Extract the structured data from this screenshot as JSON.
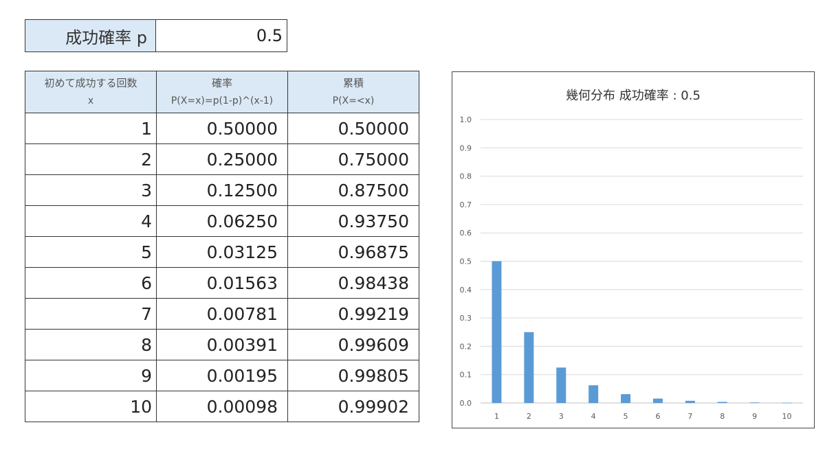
{
  "param": {
    "label": "成功確率 p",
    "value": "0.5"
  },
  "table": {
    "headers": [
      {
        "line1": "初めて成功する回数",
        "line2": "x"
      },
      {
        "line1": "確率",
        "line2": "P(X=x)=p(1-p)^(x-1)"
      },
      {
        "line1": "累積",
        "line2": "P(X=<x)"
      }
    ],
    "rows": [
      {
        "x": "1",
        "p": "0.50000",
        "cum": "0.50000"
      },
      {
        "x": "2",
        "p": "0.25000",
        "cum": "0.75000"
      },
      {
        "x": "3",
        "p": "0.12500",
        "cum": "0.87500"
      },
      {
        "x": "4",
        "p": "0.06250",
        "cum": "0.93750"
      },
      {
        "x": "5",
        "p": "0.03125",
        "cum": "0.96875"
      },
      {
        "x": "6",
        "p": "0.01563",
        "cum": "0.98438"
      },
      {
        "x": "7",
        "p": "0.00781",
        "cum": "0.99219"
      },
      {
        "x": "8",
        "p": "0.00391",
        "cum": "0.99609"
      },
      {
        "x": "9",
        "p": "0.00195",
        "cum": "0.99805"
      },
      {
        "x": "10",
        "p": "0.00098",
        "cum": "0.99902"
      }
    ]
  },
  "chart_data": {
    "type": "bar",
    "title": "幾何分布 成功確率 : 0.5",
    "categories": [
      "1",
      "2",
      "3",
      "4",
      "5",
      "6",
      "7",
      "8",
      "9",
      "10"
    ],
    "values": [
      0.5,
      0.25,
      0.125,
      0.0625,
      0.03125,
      0.01563,
      0.00781,
      0.00391,
      0.00195,
      0.00098
    ],
    "ylim": [
      0,
      1.0
    ],
    "yticks": [
      "0.0",
      "0.1",
      "0.2",
      "0.3",
      "0.4",
      "0.5",
      "0.6",
      "0.7",
      "0.8",
      "0.9",
      "1.0"
    ],
    "grid": true,
    "xlabel": "",
    "ylabel": "",
    "bar_color": "#5b9bd5"
  }
}
